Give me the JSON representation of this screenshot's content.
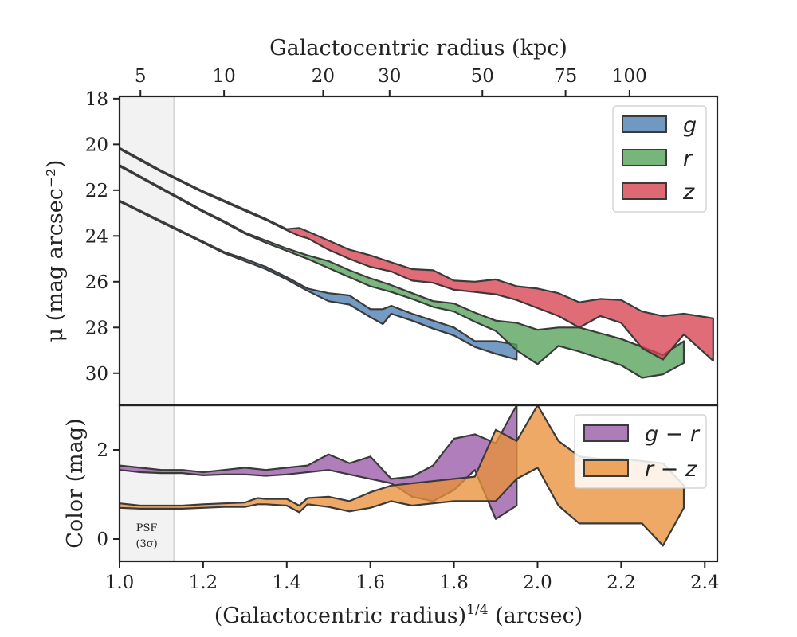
{
  "chart_data": [
    {
      "type": "area",
      "panel": "surface-brightness",
      "ylabel": "μ (mag arcsec⁻²)",
      "xlim": [
        1.0,
        2.43
      ],
      "ylim": [
        31.4,
        17.9
      ],
      "y_inverted": true,
      "yticks": [
        18,
        20,
        22,
        24,
        26,
        28,
        30
      ],
      "top_axis": {
        "label": "Galactocentric radius (kpc)",
        "ticks": [
          {
            "label": "5",
            "x": 1.05
          },
          {
            "label": "10",
            "x": 1.25
          },
          {
            "label": "20",
            "x": 1.487
          },
          {
            "label": "30",
            "x": 1.646
          },
          {
            "label": "50",
            "x": 1.868
          },
          {
            "label": "75",
            "x": 2.067
          },
          {
            "label": "100",
            "x": 2.22
          }
        ]
      },
      "legend_position": "top-right",
      "series": [
        {
          "name": "g",
          "color": "#4c7fb2",
          "x": [
            1.0,
            1.05,
            1.1,
            1.15,
            1.2,
            1.25,
            1.3,
            1.35,
            1.4,
            1.45,
            1.5,
            1.55,
            1.6,
            1.63,
            1.65,
            1.7,
            1.75,
            1.8,
            1.85,
            1.9,
            1.95
          ],
          "upper": [
            22.5,
            22.95,
            23.4,
            23.85,
            24.3,
            24.75,
            25.1,
            25.45,
            25.9,
            26.4,
            26.85,
            27.0,
            27.55,
            27.85,
            27.4,
            27.7,
            28.05,
            28.35,
            28.85,
            29.15,
            29.4
          ],
          "lower": [
            22.45,
            22.9,
            23.35,
            23.8,
            24.25,
            24.7,
            25.0,
            25.35,
            25.8,
            26.3,
            26.5,
            26.6,
            27.2,
            27.2,
            27.05,
            27.4,
            27.7,
            28.0,
            28.6,
            28.6,
            28.75
          ]
        },
        {
          "name": "r",
          "color": "#56a25a",
          "x": [
            1.0,
            1.05,
            1.1,
            1.15,
            1.2,
            1.25,
            1.3,
            1.35,
            1.4,
            1.45,
            1.5,
            1.55,
            1.6,
            1.65,
            1.7,
            1.75,
            1.8,
            1.85,
            1.9,
            1.95,
            2.0,
            2.05,
            2.1,
            2.15,
            2.2,
            2.25,
            2.3,
            2.35
          ],
          "upper": [
            20.95,
            21.45,
            21.95,
            22.45,
            22.95,
            23.4,
            23.9,
            24.3,
            24.65,
            25.0,
            25.4,
            25.8,
            26.2,
            26.45,
            26.75,
            27.1,
            27.3,
            27.75,
            28.15,
            29.0,
            29.6,
            28.8,
            29.05,
            29.35,
            29.65,
            30.2,
            30.05,
            29.55
          ],
          "lower": [
            20.9,
            21.4,
            21.9,
            22.4,
            22.9,
            23.35,
            23.85,
            24.2,
            24.55,
            24.85,
            25.1,
            25.5,
            25.85,
            26.15,
            26.5,
            26.85,
            26.95,
            27.35,
            27.7,
            27.8,
            28.1,
            28.0,
            28.0,
            28.25,
            28.5,
            28.85,
            29.2,
            28.6
          ]
        },
        {
          "name": "z",
          "color": "#d6434f",
          "x": [
            1.0,
            1.05,
            1.1,
            1.15,
            1.2,
            1.25,
            1.3,
            1.35,
            1.4,
            1.43,
            1.45,
            1.5,
            1.55,
            1.6,
            1.65,
            1.7,
            1.75,
            1.8,
            1.85,
            1.9,
            1.95,
            2.0,
            2.05,
            2.1,
            2.15,
            2.2,
            2.25,
            2.3,
            2.35,
            2.42
          ],
          "upper": [
            20.2,
            20.7,
            21.2,
            21.65,
            22.1,
            22.5,
            22.9,
            23.3,
            23.75,
            24.0,
            24.1,
            24.6,
            25.0,
            25.35,
            25.55,
            25.95,
            26.05,
            26.35,
            26.45,
            26.55,
            26.8,
            27.15,
            27.5,
            28.0,
            27.5,
            27.8,
            28.9,
            29.4,
            28.3,
            29.45
          ],
          "lower": [
            20.15,
            20.65,
            21.15,
            21.6,
            22.05,
            22.45,
            22.85,
            23.25,
            23.7,
            23.65,
            23.8,
            24.2,
            24.6,
            24.85,
            25.15,
            25.45,
            25.5,
            25.95,
            26.0,
            25.9,
            26.2,
            26.3,
            26.5,
            26.9,
            26.75,
            26.8,
            27.3,
            27.5,
            27.4,
            27.6
          ]
        }
      ]
    },
    {
      "type": "area",
      "panel": "color",
      "xlabel": "(Galactocentric radius)^1/4 (arcsec)",
      "xlabel_main": "(Galactocentric radius)",
      "xlabel_sup": "1/4",
      "xlabel_tail": " (arcsec)",
      "ylabel": "Color (mag)",
      "xlim": [
        1.0,
        2.43
      ],
      "ylim": [
        -0.5,
        3.0
      ],
      "yticks": [
        0,
        2
      ],
      "xticks": [
        1.0,
        1.2,
        1.4,
        1.6,
        1.8,
        2.0,
        2.2,
        2.4
      ],
      "xtick_labels": [
        "1.0",
        "1.2",
        "1.4",
        "1.6",
        "1.8",
        "2.0",
        "2.2",
        "2.4"
      ],
      "legend_position": "top-right",
      "psf_region": {
        "x": [
          1.0,
          1.13
        ],
        "label": "PSF",
        "sublabel": "(3σ)"
      },
      "series": [
        {
          "name": "g − r",
          "color": "#9a5ba8",
          "x": [
            1.0,
            1.05,
            1.1,
            1.15,
            1.2,
            1.25,
            1.3,
            1.35,
            1.4,
            1.45,
            1.5,
            1.55,
            1.6,
            1.65,
            1.7,
            1.75,
            1.8,
            1.85,
            1.9,
            1.95
          ],
          "upper": [
            1.65,
            1.6,
            1.55,
            1.55,
            1.5,
            1.55,
            1.6,
            1.55,
            1.6,
            1.65,
            1.9,
            1.7,
            1.85,
            1.35,
            1.4,
            1.65,
            2.25,
            2.35,
            2.15,
            3.0
          ],
          "lower": [
            1.55,
            1.5,
            1.48,
            1.48,
            1.43,
            1.45,
            1.45,
            1.42,
            1.45,
            1.5,
            1.55,
            1.45,
            1.35,
            1.25,
            0.95,
            0.85,
            1.1,
            1.55,
            0.45,
            0.75
          ]
        },
        {
          "name": "r − z",
          "color": "#e8913a",
          "x": [
            1.0,
            1.05,
            1.1,
            1.15,
            1.2,
            1.25,
            1.3,
            1.33,
            1.35,
            1.4,
            1.43,
            1.45,
            1.5,
            1.55,
            1.6,
            1.65,
            1.7,
            1.75,
            1.8,
            1.85,
            1.9,
            1.95,
            2.0,
            2.05,
            2.1,
            2.15,
            2.2,
            2.25,
            2.3,
            2.35
          ],
          "upper": [
            0.8,
            0.75,
            0.75,
            0.75,
            0.78,
            0.8,
            0.82,
            0.92,
            0.9,
            0.9,
            0.75,
            0.92,
            0.95,
            0.85,
            1.05,
            1.2,
            1.25,
            1.3,
            1.35,
            1.4,
            2.45,
            2.2,
            3.0,
            2.2,
            1.85,
            1.8,
            1.8,
            1.75,
            1.7,
            1.2
          ],
          "lower": [
            0.7,
            0.68,
            0.68,
            0.68,
            0.7,
            0.72,
            0.72,
            0.78,
            0.78,
            0.75,
            0.6,
            0.78,
            0.72,
            0.62,
            0.7,
            0.85,
            0.75,
            0.8,
            0.85,
            0.85,
            0.85,
            1.35,
            1.6,
            0.75,
            0.35,
            0.35,
            0.35,
            0.35,
            -0.15,
            0.7
          ]
        }
      ]
    }
  ]
}
